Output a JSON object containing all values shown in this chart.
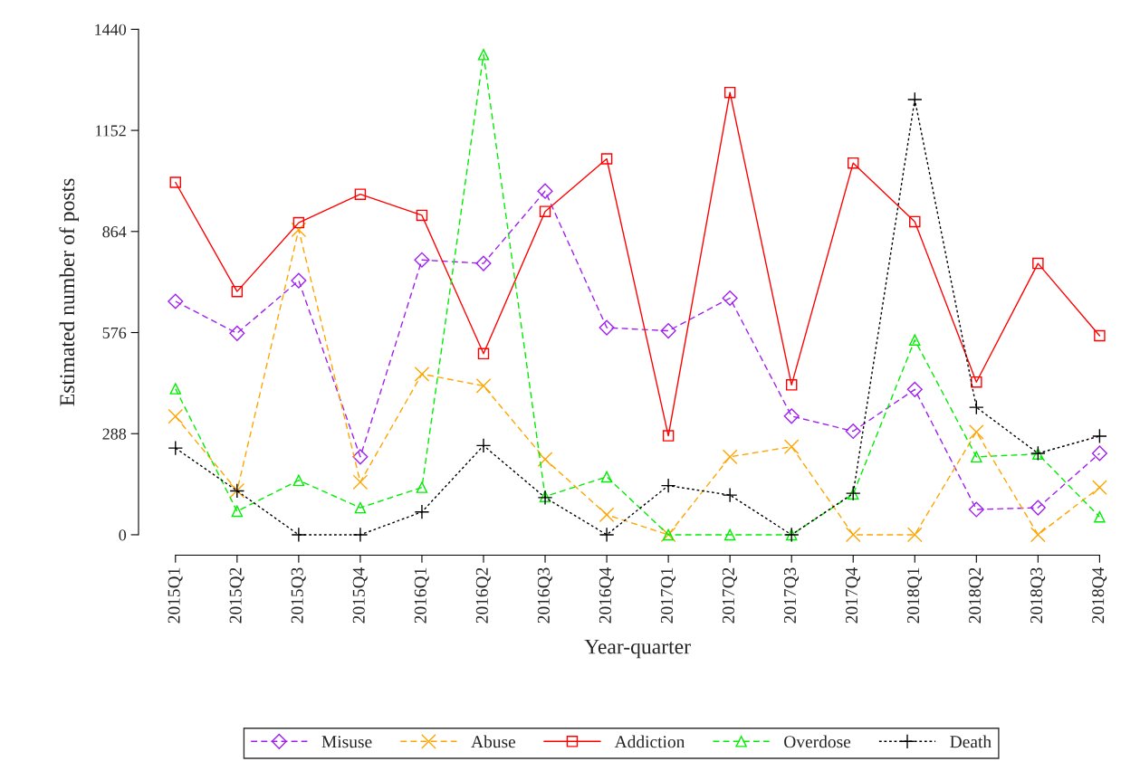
{
  "chart_data": {
    "type": "line",
    "xlabel": "Year-quarter",
    "ylabel": "Estimated number of posts",
    "categories": [
      "2015Q1",
      "2015Q2",
      "2015Q3",
      "2015Q4",
      "2016Q1",
      "2016Q2",
      "2016Q3",
      "2016Q4",
      "2017Q1",
      "2017Q2",
      "2017Q3",
      "2017Q4",
      "2018Q1",
      "2018Q2",
      "2018Q3",
      "2018Q4"
    ],
    "series": [
      {
        "name": "Misuse",
        "color": "#a020f0",
        "marker": "diamond",
        "line_style": "dashed",
        "values": [
          665,
          574,
          724,
          222,
          783,
          773,
          979,
          590,
          581,
          674,
          338,
          295,
          414,
          72,
          77,
          232
        ]
      },
      {
        "name": "Abuse",
        "color": "#ffa500",
        "marker": "cross",
        "line_style": "dashed",
        "values": [
          337,
          126,
          869,
          150,
          458,
          424,
          215,
          57,
          0,
          222,
          251,
          0,
          0,
          293,
          0,
          135
        ]
      },
      {
        "name": "Addiction",
        "color": "#ff0000",
        "marker": "square",
        "line_style": "solid",
        "values": [
          1004,
          693,
          889,
          970,
          910,
          516,
          921,
          1071,
          282,
          1260,
          427,
          1059,
          892,
          435,
          773,
          567
        ]
      },
      {
        "name": "Overdose",
        "color": "#00ee00",
        "marker": "triangle",
        "line_style": "dashed",
        "values": [
          416,
          67,
          155,
          77,
          135,
          1368,
          109,
          165,
          0,
          0,
          0,
          116,
          555,
          222,
          230,
          51
        ]
      },
      {
        "name": "Death",
        "color": "#000000",
        "marker": "plus",
        "line_style": "dotted",
        "values": [
          247,
          125,
          0,
          0,
          65,
          254,
          106,
          0,
          140,
          113,
          0,
          118,
          1240,
          363,
          232,
          281
        ]
      }
    ],
    "ylim": [
      -58,
      1440
    ],
    "yticks": [
      0,
      288,
      576,
      864,
      1152,
      1440
    ],
    "grid": false,
    "legend": "bottom"
  }
}
